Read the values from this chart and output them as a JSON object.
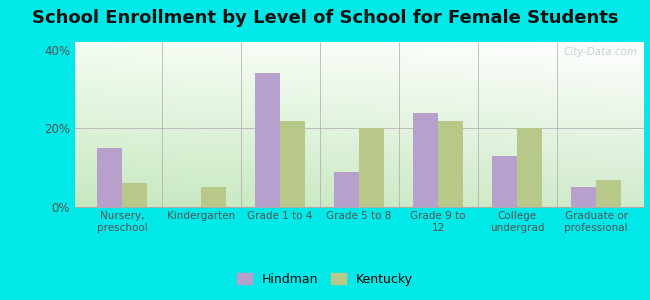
{
  "title": "School Enrollment by Level of School for Female Students",
  "categories": [
    "Nursery,\npreschool",
    "Kindergarten",
    "Grade 1 to 4",
    "Grade 5 to 8",
    "Grade 9 to\n12",
    "College\nundergrad",
    "Graduate or\nprofessional"
  ],
  "hindman": [
    15,
    0,
    34,
    9,
    24,
    13,
    5
  ],
  "kentucky": [
    6,
    5,
    22,
    20,
    22,
    20,
    7
  ],
  "hindman_color": "#b8a0cc",
  "kentucky_color": "#b8c888",
  "background_outer": "#00e8e8",
  "ylim": [
    0,
    42
  ],
  "yticks": [
    0,
    20,
    40
  ],
  "ytick_labels": [
    "0%",
    "20%",
    "40%"
  ],
  "bar_width": 0.32,
  "legend_labels": [
    "Hindman",
    "Kentucky"
  ],
  "watermark": "City-Data.com",
  "title_fontsize": 13,
  "gradient_top": "#f0f8ee",
  "gradient_bottom": "#c8e8c0",
  "gradient_left": "#c0e8c0",
  "gradient_right": "#eef8f0"
}
